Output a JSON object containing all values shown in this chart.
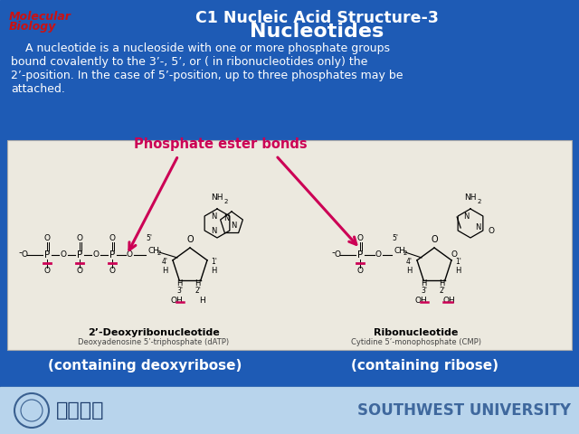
{
  "bg_color": "#1e5bb5",
  "footer_color": "#b8d4ec",
  "title1": "C1 Nucleic Acid Structure-3",
  "title2": "Nucleotides",
  "mol_bio_line1": "Molecular",
  "mol_bio_line2": "Biology",
  "body_text_lines": [
    "    A nucleotide is a nucleoside with one or more phosphate groups",
    "bound covalently to the 3’-, 5’, or ( in ribonucleotides only) the",
    "2’-position. In the case of 5’-position, up to three phosphates may be",
    "attached."
  ],
  "arrow_label": "Phosphate ester bonds",
  "bottom_left": "(containing deoxyribose)",
  "bottom_right": "(containing ribose)",
  "footer_univ": "SOUTHWEST UNIVERSITY",
  "arrow_color": "#cc0055",
  "text_white": "#ffffff",
  "text_red": "#cc1111",
  "diagram_bg": "#ece9df",
  "label_left1": "2’-Deoxyribonucleotide",
  "label_left2": "Deoxyadenosine 5’-triphosphate (dATP)",
  "label_right1": "Ribonucleotide",
  "label_right2": "Cytidine 5’-monophosphate (CMP)",
  "fig_width": 6.4,
  "fig_height": 4.8,
  "dpi": 100
}
